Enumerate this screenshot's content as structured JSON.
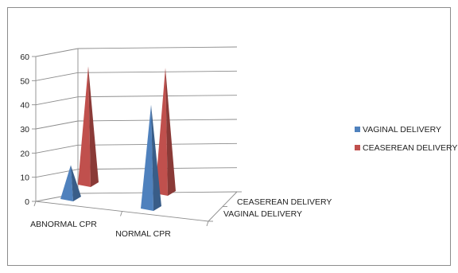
{
  "chart_data": {
    "type": "bar",
    "style": "3d-pyramid",
    "categories": [
      "ABNORMAL CPR",
      "NORMAL CPR"
    ],
    "depth_labels": [
      "VAGINAL DELIVERY",
      "CEASEREAN DELIVERY"
    ],
    "series": [
      {
        "name": "VAGINAL DELIVERY",
        "values": [
          14,
          43
        ],
        "color": "#4f81bd"
      },
      {
        "name": "CEASEREAN DELIVERY",
        "values": [
          49,
          52
        ],
        "color": "#c0504d"
      }
    ],
    "yticks": [
      "0",
      "10",
      "20",
      "30",
      "40",
      "50",
      "60"
    ],
    "ylim": [
      0,
      60
    ],
    "legend_position": "right",
    "grid": true
  }
}
